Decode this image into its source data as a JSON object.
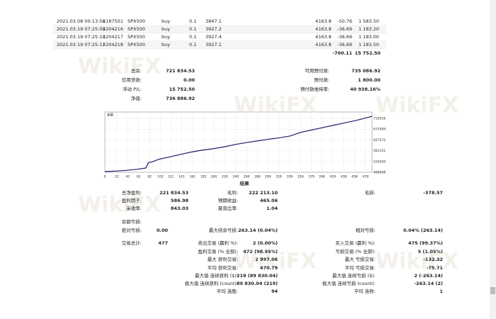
{
  "watermark": "WikiFX",
  "trades": {
    "rows": [
      [
        "2021.03.08 00:13:56",
        "2187501",
        "SPX500",
        "buy",
        "0.1",
        "3847.1",
        "4163.8",
        "-50.76",
        "1 583.50"
      ],
      [
        "2021.03.19 07:25:09",
        "2204216",
        "SPX500",
        "buy",
        "0.1",
        "3927.2",
        "4163.8",
        "-36.69",
        "1 183.20"
      ],
      [
        "2021.03.19 07:25:10",
        "2204217",
        "SPX500",
        "buy",
        "0.1",
        "3927.4",
        "4163.8",
        "-36.69",
        "1 183.00"
      ],
      [
        "2021.03.19 07:25:11",
        "2204218",
        "SPX500",
        "buy",
        "0.1",
        "3927.1",
        "4163.8",
        "-36.69",
        "1 183.50"
      ]
    ],
    "totals": [
      "-700.11",
      "15 752.50"
    ]
  },
  "summary": [
    [
      {
        "label": "总余:",
        "value": "721 834.53"
      },
      {
        "label": "可用预付款:",
        "value": "735 086.92"
      }
    ],
    [
      {
        "label": "信用贷款:",
        "value": "0.00"
      },
      {
        "label": "预付款:",
        "value": "1 800.00"
      }
    ],
    [
      {
        "label": "浮动 P/L:",
        "value": "15 752.50"
      },
      {
        "label": "预付款维持率:",
        "value": "40 938.16%"
      }
    ],
    [
      {
        "label": "净值:",
        "value": "736 886.92"
      },
      null
    ]
  ],
  "chart_data": {
    "type": "line",
    "title": "余额",
    "color": "#1c1f6e",
    "grid": true,
    "xlim": [
      0,
      490
    ],
    "ylim": [
      488908,
      746500
    ],
    "xticks": [
      0,
      22,
      42,
      62,
      82,
      102,
      121,
      141,
      161,
      181,
      200,
      220,
      240,
      260,
      280,
      299,
      319,
      339,
      359,
      379,
      398,
      418,
      438,
      458,
      478
    ],
    "yticks": [
      488908,
      535030,
      581151,
      627272,
      673394,
      719516
    ],
    "x": [
      0,
      20,
      40,
      60,
      75,
      80,
      85,
      100,
      120,
      140,
      160,
      180,
      200,
      220,
      240,
      260,
      280,
      300,
      320,
      340,
      360,
      380,
      400,
      420,
      440,
      460,
      480,
      490
    ],
    "values": [
      492000,
      494000,
      497000,
      502000,
      507000,
      530000,
      532000,
      545000,
      555000,
      566000,
      576000,
      584000,
      590000,
      598000,
      608000,
      616000,
      623000,
      630000,
      636000,
      644000,
      660000,
      670000,
      680000,
      690000,
      700000,
      710000,
      722000,
      728000
    ]
  },
  "results": {
    "title": "结果",
    "rows": [
      [
        {
          "label": "总净盈利:",
          "value": "221 834.53"
        },
        {
          "label": "毛利:",
          "value": "222 213.10"
        },
        {
          "label": "毛损:",
          "value": "-378.57"
        }
      ],
      [
        {
          "label": "盈利因子:",
          "value": "586.98"
        },
        {
          "label": "预期收益:",
          "value": "465.06"
        },
        null
      ],
      [
        {
          "label": "采收率:",
          "value": "843.03"
        },
        {
          "label": "夏普比率:",
          "value": "1.04"
        },
        null
      ],
      [
        {
          "label": "余额亏损:"
        },
        null,
        null
      ],
      [
        {
          "label": "绝对亏损:",
          "value": "0.00"
        },
        {
          "label": "最大结余亏损:",
          "value": "263.14 (0.04%)"
        },
        {
          "label": "相对亏损:",
          "value": "0.04% (263.14)"
        }
      ],
      [
        {
          "label": "交易总计:",
          "value": "477"
        },
        {
          "label": "卖出交易 (赢利 %):",
          "value": "2 (0.00%)"
        },
        {
          "label": "买入交易 (赢利 %):",
          "value": "475 (99.37%)"
        }
      ],
      [
        null,
        {
          "label": "盈利交易 (% 全部):",
          "value": "472 (98.95%)"
        },
        {
          "label": "亏损交易 (% 全部):",
          "value": "5 (1.05%)"
        }
      ],
      [
        null,
        {
          "label": "最大 获利交易:",
          "value": "2 997.06"
        },
        {
          "label": "最大 亏损交易:",
          "value": "-132.32"
        }
      ],
      [
        null,
        {
          "label": "平均 获利交易:",
          "value": "470.79"
        },
        {
          "label": "平均 亏损交易:",
          "value": "-75.71"
        }
      ],
      [
        null,
        {
          "label": "最大值 连续获利 ($):",
          "value": "219 (89 830.04)"
        },
        {
          "label": "最大值 连续亏损 ($):",
          "value": "2 (-263.14)"
        }
      ],
      [
        null,
        {
          "label": "极大值 连续获利 (count):",
          "value": "89 830.04 (219)"
        },
        {
          "label": "极大值 连续亏损 (count):",
          "value": "-263.14 (2)"
        }
      ],
      [
        null,
        {
          "label": "平均 连胜:",
          "value": "94"
        },
        {
          "label": "平均 连败:",
          "value": "1"
        }
      ]
    ]
  }
}
